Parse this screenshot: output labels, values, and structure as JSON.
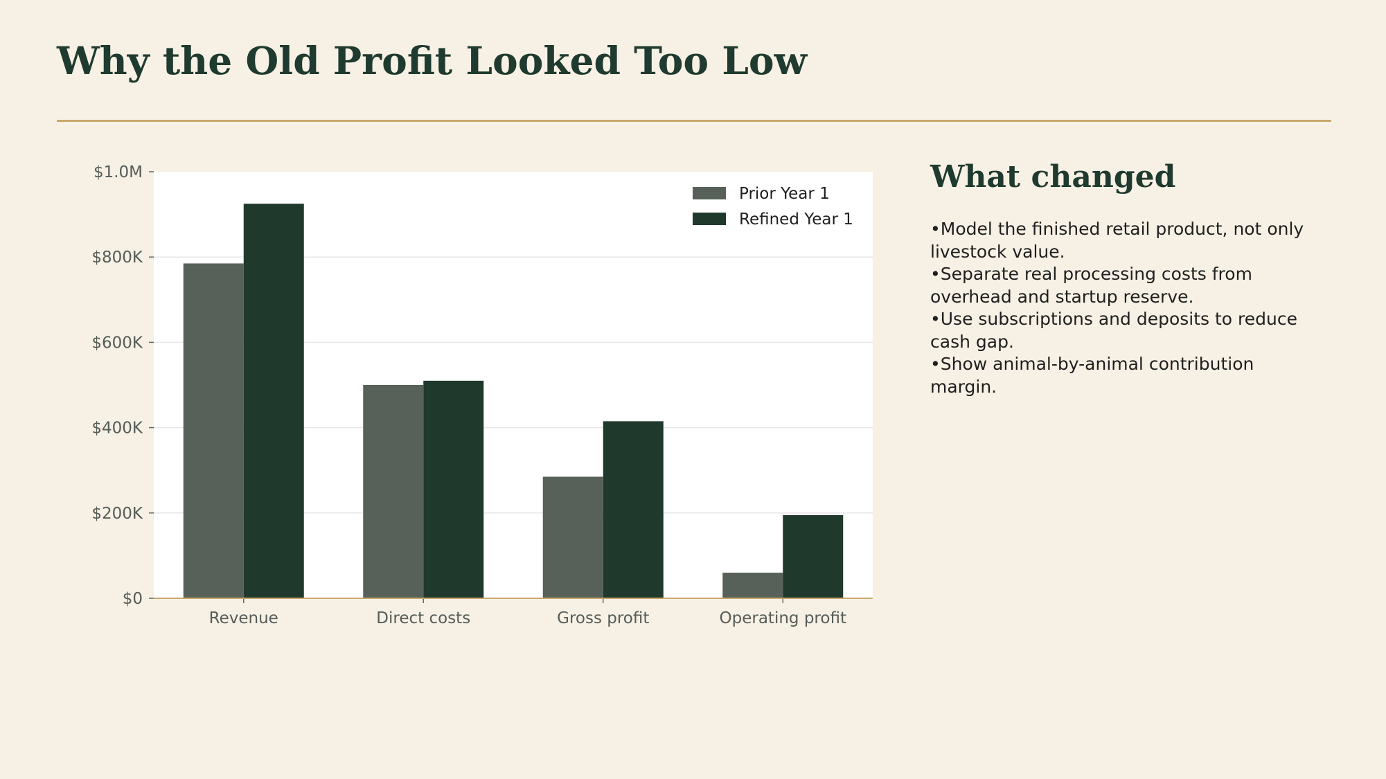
{
  "slide": {
    "title": "Why the Old Profit Looked Too Low"
  },
  "sidebar": {
    "heading": "What changed",
    "bullets": [
      "Model the finished retail product, not only livestock value.",
      "Separate real processing costs from overhead and startup reserve.",
      "Use subscriptions and deposits to reduce cash gap.",
      "Show animal-by-animal contribution margin."
    ]
  },
  "chart_data": {
    "type": "bar",
    "categories": [
      "Revenue",
      "Direct costs",
      "Gross profit",
      "Operating profit"
    ],
    "series": [
      {
        "name": "Prior Year 1",
        "values": [
          785000,
          500000,
          285000,
          60000
        ],
        "color": "#576159"
      },
      {
        "name": "Refined Year 1",
        "values": [
          925000,
          510000,
          415000,
          195000
        ],
        "color": "#20392d"
      }
    ],
    "ylim": [
      0,
      1000000
    ],
    "yticks": [
      0,
      200000,
      400000,
      600000,
      800000,
      1000000
    ],
    "ytick_labels": [
      "$0",
      "$200K",
      "$400K",
      "$600K",
      "$800K",
      "$1.0M"
    ],
    "grid": true,
    "legend": "top-right",
    "title": "",
    "xlabel": "",
    "ylabel": ""
  }
}
